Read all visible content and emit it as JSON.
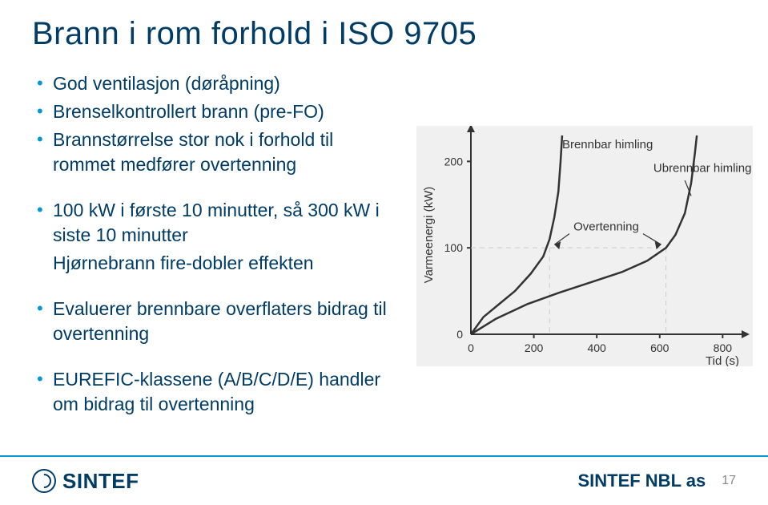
{
  "title": "Brann i rom forhold i ISO 9705",
  "bullets_group1": [
    "God ventilasjon (døråpning)",
    "Brenselkontrollert brann (pre-FO)",
    "Brannstørrelse stor nok i forhold til rommet medfører overtenning"
  ],
  "bullets_group2": [
    "100 kW i første 10 minutter, så 300 kW i siste 10 minutter"
  ],
  "group2_subline": "Hjørnebrann fire-dobler effekten",
  "bullets_group3": [
    "Evaluerer brennbare overflaters bidrag til overtenning"
  ],
  "bullets_group4": [
    "EUREFIC-klassene (A/B/C/D/E) handler om bidrag til  overtenning"
  ],
  "footer": {
    "logo_text": "SINTEF",
    "label": "SINTEF NBL as",
    "page": "17"
  },
  "chart": {
    "type": "line",
    "background_color": "#f0f0f0",
    "axis_color": "#333333",
    "curve_color": "#333333",
    "grid_dash": "6 5",
    "xlabel": "Tid (s)",
    "ylabel": "Varmeenergi (kW)",
    "xlim": [
      0,
      850
    ],
    "ylim": [
      0,
      230
    ],
    "xticks": [
      0,
      200,
      400,
      600,
      800
    ],
    "yticks": [
      0,
      100,
      200
    ],
    "annotations": {
      "brennbar": "Brennbar himling",
      "ubrennbar": "Ubrennbar himling",
      "overtenning": "Overtenning"
    },
    "series": [
      {
        "name": "brennbar_himling",
        "points": [
          [
            0,
            0
          ],
          [
            40,
            20
          ],
          [
            90,
            35
          ],
          [
            140,
            50
          ],
          [
            190,
            70
          ],
          [
            230,
            90
          ],
          [
            250,
            110
          ],
          [
            265,
            135
          ],
          [
            278,
            165
          ],
          [
            285,
            200
          ],
          [
            290,
            230
          ]
        ]
      },
      {
        "name": "ubrennbar_himling",
        "points": [
          [
            0,
            0
          ],
          [
            80,
            18
          ],
          [
            180,
            35
          ],
          [
            280,
            48
          ],
          [
            380,
            60
          ],
          [
            480,
            72
          ],
          [
            560,
            85
          ],
          [
            620,
            100
          ],
          [
            650,
            115
          ],
          [
            680,
            140
          ],
          [
            700,
            175
          ],
          [
            712,
            210
          ],
          [
            718,
            230
          ]
        ]
      }
    ],
    "overtenning_y": 100,
    "label_fontsize": 14,
    "tick_fontsize": 14
  }
}
